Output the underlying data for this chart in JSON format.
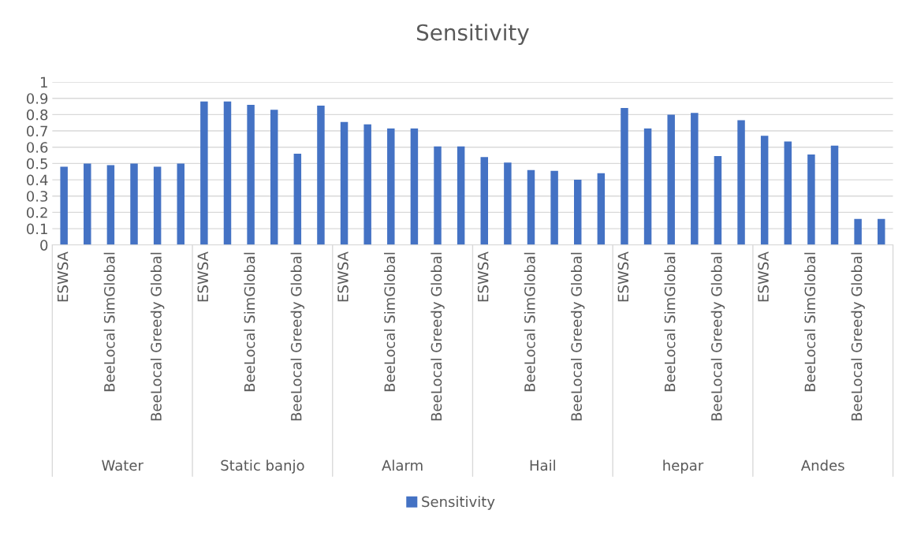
{
  "chart_data": {
    "type": "bar",
    "title": "Sensitivity",
    "categories": [
      "ESWSA",
      null,
      "BeeLocal SimGlobal",
      null,
      "BeeLocal Greedy Global",
      null,
      "ESWSA",
      null,
      "BeeLocal SimGlobal",
      null,
      "BeeLocal Greedy Global",
      null,
      "ESWSA",
      null,
      "BeeLocal SimGlobal",
      null,
      "BeeLocal Greedy Global",
      null,
      "ESWSA",
      null,
      "BeeLocal SimGlobal",
      null,
      "BeeLocal Greedy Global",
      null,
      "ESWSA",
      null,
      "BeeLocal SimGlobal",
      null,
      "BeeLocal Greedy Global",
      null,
      "ESWSA",
      null,
      "BeeLocal SimGlobal",
      null,
      "BeeLocal Greedy Global",
      null
    ],
    "series": [
      {
        "name": "Sensitivity",
        "color": "#4472c4",
        "values": [
          0.48,
          0.5,
          0.49,
          0.5,
          0.48,
          0.5,
          0.88,
          0.88,
          0.86,
          0.83,
          0.56,
          0.855,
          0.755,
          0.74,
          0.715,
          0.715,
          0.605,
          0.605,
          0.54,
          0.505,
          0.46,
          0.455,
          0.4,
          0.44,
          0.84,
          0.715,
          0.8,
          0.81,
          0.545,
          0.765,
          0.67,
          0.635,
          0.555,
          0.61,
          0.16,
          0.16
        ]
      }
    ],
    "annotations": [
      "Water",
      "Static banjo",
      "Alarm",
      "Hail",
      "hepar",
      "Andes"
    ],
    "ylim": [
      0,
      1
    ],
    "yticks": [
      0,
      0.1,
      0.2,
      0.3,
      0.4,
      0.5,
      0.6,
      0.7,
      0.8,
      0.9,
      1
    ],
    "grid": "y",
    "legend": "bottom"
  }
}
